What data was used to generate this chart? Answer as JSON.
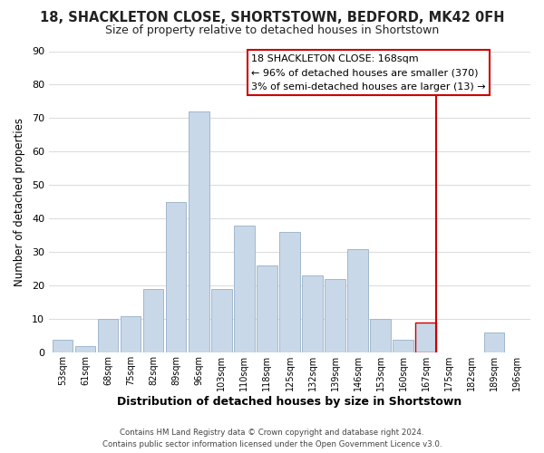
{
  "title": "18, SHACKLETON CLOSE, SHORTSTOWN, BEDFORD, MK42 0FH",
  "subtitle": "Size of property relative to detached houses in Shortstown",
  "xlabel": "Distribution of detached houses by size in Shortstown",
  "ylabel": "Number of detached properties",
  "footer_line1": "Contains HM Land Registry data © Crown copyright and database right 2024.",
  "footer_line2": "Contains public sector information licensed under the Open Government Licence v3.0.",
  "bin_labels": [
    "53sqm",
    "61sqm",
    "68sqm",
    "75sqm",
    "82sqm",
    "89sqm",
    "96sqm",
    "103sqm",
    "110sqm",
    "118sqm",
    "125sqm",
    "132sqm",
    "139sqm",
    "146sqm",
    "153sqm",
    "160sqm",
    "167sqm",
    "175sqm",
    "182sqm",
    "189sqm",
    "196sqm"
  ],
  "bar_heights": [
    4,
    2,
    10,
    11,
    19,
    45,
    72,
    19,
    38,
    26,
    36,
    23,
    22,
    31,
    10,
    4,
    9,
    0,
    0,
    6,
    0
  ],
  "bar_color": "#c8d8e8",
  "bar_edge_color": "#a0b8cc",
  "highlight_bar_index": 16,
  "highlight_line_color": "#cc0000",
  "ylim": [
    0,
    90
  ],
  "yticks": [
    0,
    10,
    20,
    30,
    40,
    50,
    60,
    70,
    80,
    90
  ],
  "annotation_title": "18 SHACKLETON CLOSE: 168sqm",
  "annotation_line1": "← 96% of detached houses are smaller (370)",
  "annotation_line2": "3% of semi-detached houses are larger (13) →",
  "background_color": "#ffffff",
  "title_fontsize": 10.5,
  "subtitle_fontsize": 9
}
